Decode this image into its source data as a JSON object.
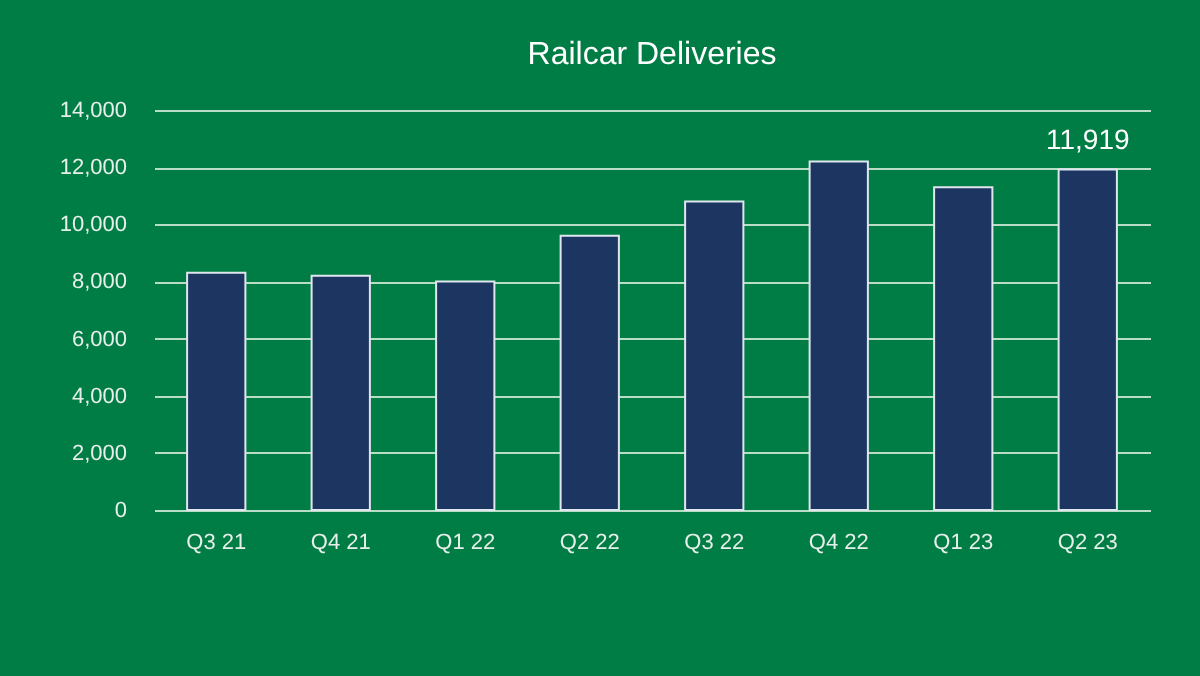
{
  "chart_data": {
    "type": "bar",
    "title": "Railcar Deliveries",
    "categories": [
      "Q3 21",
      "Q4 21",
      "Q1 22",
      "Q2 22",
      "Q3 22",
      "Q4 22",
      "Q1 23",
      "Q2 23"
    ],
    "values": [
      8300,
      8200,
      8000,
      9600,
      10800,
      12200,
      11300,
      11919
    ],
    "value_labels": [
      null,
      null,
      null,
      null,
      null,
      null,
      null,
      "11,919"
    ],
    "color": "#1d3561",
    "ylim": [
      0,
      14000
    ],
    "yticks": [
      0,
      {
        "value": 2000,
        "label": "2,000"
      },
      {
        "value": 4000,
        "label": "4,000"
      },
      {
        "value": 6000,
        "label": "6,000"
      },
      {
        "value": 8000,
        "label": "8,000"
      },
      {
        "value": 10000,
        "label": "10,000"
      },
      {
        "value": 12000,
        "label": "12,000"
      },
      {
        "value": 14000,
        "label": "14,000"
      }
    ],
    "grid": "y"
  }
}
